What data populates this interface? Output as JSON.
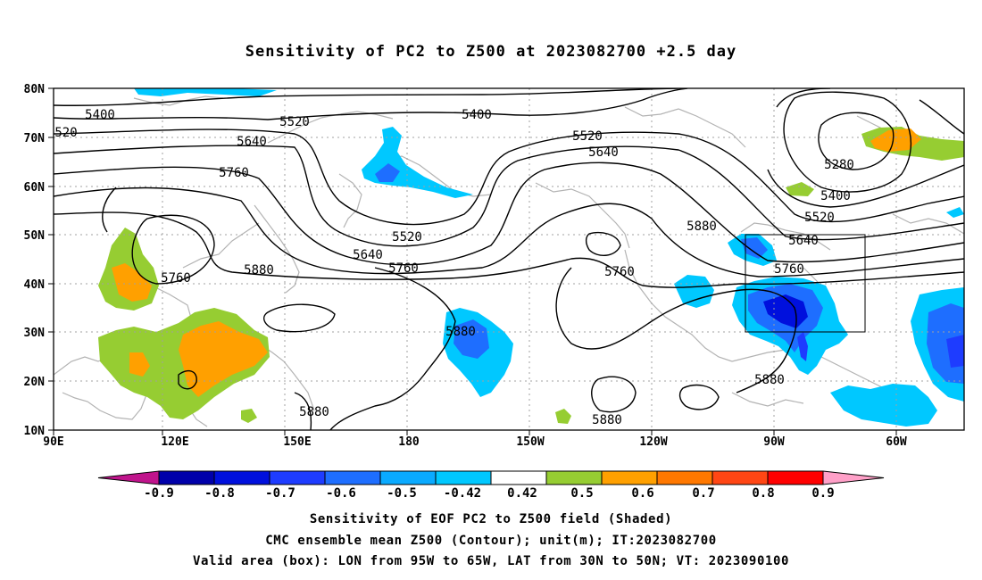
{
  "title": "Sensitivity of PC2 to Z500 at 2023082700 +2.5 day",
  "axes": {
    "lon_ticks": [
      "90E",
      "120E",
      "150E",
      "180",
      "150W",
      "120W",
      "90W",
      "60W"
    ],
    "lat_ticks": [
      "80N",
      "70N",
      "60N",
      "50N",
      "40N",
      "30N",
      "20N",
      "10N"
    ]
  },
  "colorbar": {
    "colors": [
      "#c0148c",
      "#0000aa",
      "#0010dd",
      "#1e3cff",
      "#1e6eff",
      "#0aaaff",
      "#00c8ff",
      "#ffffff",
      "#96cd32",
      "#ffa000",
      "#ff7800",
      "#ff4614",
      "#ff0000",
      "#ffa0c8"
    ],
    "labels": [
      "-0.9",
      "-0.8",
      "-0.7",
      "-0.6",
      "-0.5",
      "-0.42",
      "0.42",
      "0.5",
      "0.6",
      "0.7",
      "0.8",
      "0.9"
    ]
  },
  "contour_labels": [
    "5400",
    "520",
    "5520",
    "5640",
    "5760",
    "5400",
    "5520",
    "5640",
    "5280",
    "5400",
    "5520",
    "5880",
    "5640",
    "5760",
    "5520",
    "5640",
    "5760",
    "5760",
    "5880",
    "5760",
    "5880",
    "5880",
    "5880",
    "5880"
  ],
  "valid_area": {
    "lon": "95W to 65W",
    "lat": "30N to 50N"
  },
  "captions": [
    "Sensitivity of EOF PC2 to Z500 field (Shaded)",
    "CMC ensemble mean Z500 (Contour); unit(m); IT:2023082700",
    "Valid area (box): LON from 95W to 65W, LAT from 30N to 50N; VT: 2023090100"
  ]
}
